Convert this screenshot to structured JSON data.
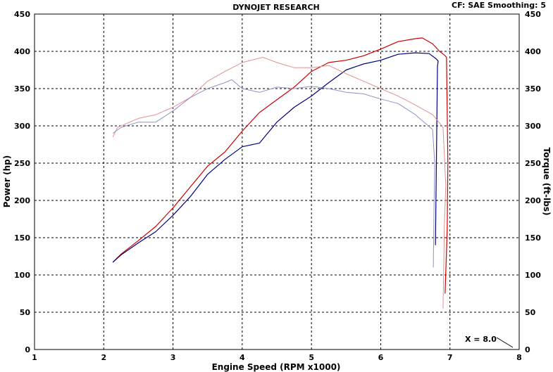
{
  "header": {
    "title": "DYNOJET RESEARCH",
    "settings": "CF: SAE  Smoothing: 5"
  },
  "readout": "X = 8.0",
  "chart_data": {
    "type": "line",
    "title": "DYNOJET RESEARCH",
    "xlabel": "Engine Speed (RPM x1000)",
    "ylabel_left": "Power (hp)",
    "ylabel_right": "Torque (ft-lbs)",
    "xlim": [
      1,
      8
    ],
    "ylim": [
      0,
      450
    ],
    "x_ticks": [
      "1",
      "2",
      "3",
      "4",
      "5",
      "6",
      "7",
      "8"
    ],
    "y_ticks": [
      "0",
      "50",
      "100",
      "150",
      "200",
      "250",
      "300",
      "350",
      "400",
      "450"
    ],
    "grid": true,
    "series": [
      {
        "kind": "power",
        "color": "#cc0000",
        "points": [
          [
            2.13,
            117
          ],
          [
            2.25,
            128
          ],
          [
            2.5,
            146
          ],
          [
            2.75,
            165
          ],
          [
            3.0,
            190
          ],
          [
            3.25,
            218
          ],
          [
            3.5,
            246
          ],
          [
            3.75,
            265
          ],
          [
            4.0,
            293
          ],
          [
            4.25,
            318
          ],
          [
            4.5,
            335
          ],
          [
            4.75,
            352
          ],
          [
            5.0,
            373
          ],
          [
            5.25,
            385
          ],
          [
            5.5,
            388
          ],
          [
            5.75,
            394
          ],
          [
            6.0,
            403
          ],
          [
            6.25,
            413
          ],
          [
            6.5,
            417
          ],
          [
            6.6,
            418
          ],
          [
            6.75,
            410
          ],
          [
            6.85,
            400
          ],
          [
            6.92,
            395
          ],
          [
            6.95,
            392
          ],
          [
            6.97,
            250
          ],
          [
            6.96,
            160
          ],
          [
            6.93,
            75
          ]
        ]
      },
      {
        "kind": "power",
        "color": "#000080",
        "points": [
          [
            2.13,
            117
          ],
          [
            2.25,
            127
          ],
          [
            2.5,
            143
          ],
          [
            2.75,
            158
          ],
          [
            3.0,
            180
          ],
          [
            3.25,
            205
          ],
          [
            3.5,
            235
          ],
          [
            3.75,
            255
          ],
          [
            4.0,
            272
          ],
          [
            4.25,
            277
          ],
          [
            4.5,
            305
          ],
          [
            4.75,
            325
          ],
          [
            5.0,
            340
          ],
          [
            5.25,
            358
          ],
          [
            5.5,
            375
          ],
          [
            5.75,
            383
          ],
          [
            6.0,
            388
          ],
          [
            6.25,
            396
          ],
          [
            6.5,
            398
          ],
          [
            6.7,
            397
          ],
          [
            6.8,
            390
          ],
          [
            6.83,
            387
          ],
          [
            6.82,
            380
          ],
          [
            6.8,
            220
          ],
          [
            6.79,
            140
          ]
        ]
      },
      {
        "kind": "torque",
        "color": "#e09090",
        "points": [
          [
            2.13,
            285
          ],
          [
            2.2,
            298
          ],
          [
            2.5,
            310
          ],
          [
            2.75,
            315
          ],
          [
            3.0,
            325
          ],
          [
            3.25,
            338
          ],
          [
            3.5,
            360
          ],
          [
            3.75,
            373
          ],
          [
            4.0,
            385
          ],
          [
            4.3,
            392
          ],
          [
            4.5,
            385
          ],
          [
            4.75,
            378
          ],
          [
            5.0,
            378
          ],
          [
            5.25,
            381
          ],
          [
            5.5,
            370
          ],
          [
            5.75,
            360
          ],
          [
            6.0,
            350
          ],
          [
            6.25,
            340
          ],
          [
            6.5,
            328
          ],
          [
            6.75,
            315
          ],
          [
            6.9,
            298
          ],
          [
            6.94,
            220
          ],
          [
            6.92,
            170
          ],
          [
            6.9,
            55
          ]
        ]
      },
      {
        "kind": "torque",
        "color": "#9090c8",
        "points": [
          [
            2.13,
            290
          ],
          [
            2.25,
            298
          ],
          [
            2.5,
            305
          ],
          [
            2.75,
            305
          ],
          [
            3.0,
            320
          ],
          [
            3.25,
            338
          ],
          [
            3.5,
            350
          ],
          [
            3.75,
            358
          ],
          [
            3.85,
            362
          ],
          [
            4.0,
            350
          ],
          [
            4.25,
            345
          ],
          [
            4.5,
            352
          ],
          [
            4.75,
            350
          ],
          [
            5.0,
            353
          ],
          [
            5.25,
            350
          ],
          [
            5.5,
            345
          ],
          [
            5.75,
            343
          ],
          [
            6.0,
            336
          ],
          [
            6.25,
            330
          ],
          [
            6.5,
            315
          ],
          [
            6.75,
            295
          ],
          [
            6.78,
            250
          ],
          [
            6.77,
            190
          ],
          [
            6.76,
            110
          ]
        ]
      }
    ]
  }
}
